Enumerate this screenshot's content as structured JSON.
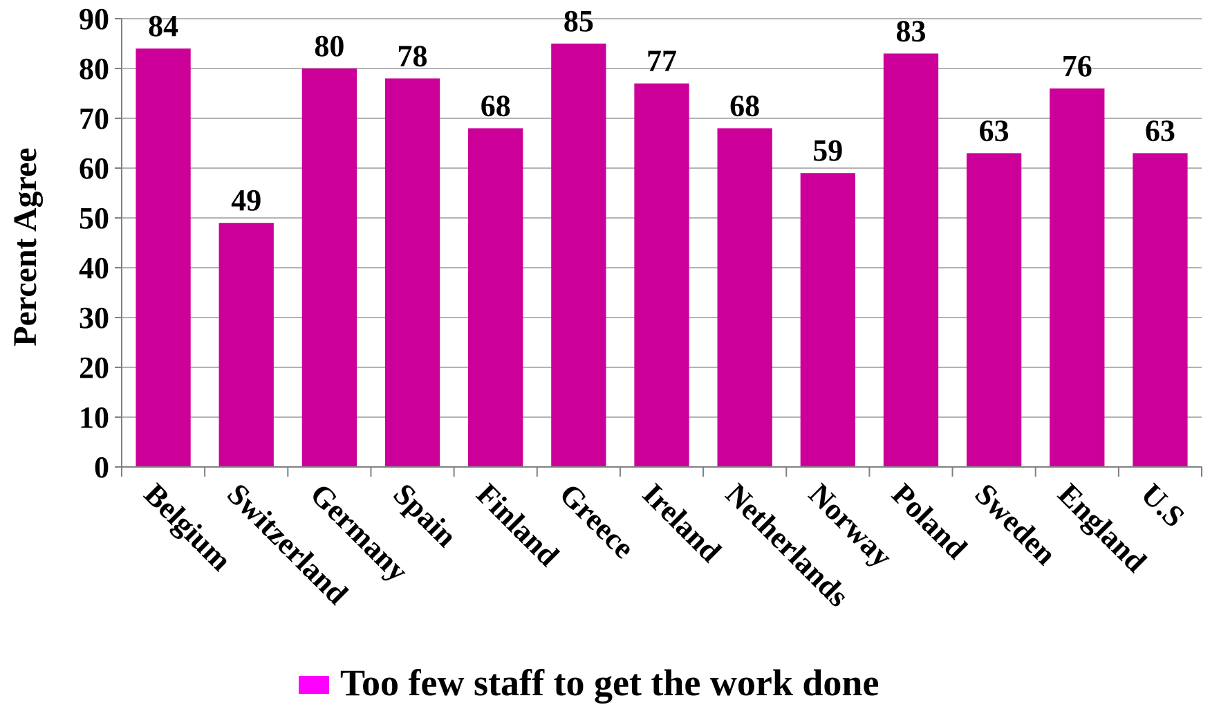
{
  "chart_data": {
    "type": "bar",
    "categories": [
      "Belgium",
      "Switzerland",
      "Germany",
      "Spain",
      "Finland",
      "Greece",
      "Ireland",
      "Netherlands",
      "Norway",
      "Poland",
      "Sweden",
      "England",
      "U.S"
    ],
    "series": [
      {
        "name": "Too few staff to get the work done",
        "values": [
          84,
          49,
          80,
          78,
          68,
          85,
          77,
          68,
          59,
          83,
          63,
          76,
          63
        ]
      }
    ],
    "ylabel": "Percent Agree",
    "ylim": [
      0,
      90
    ],
    "yticks": [
      0,
      10,
      20,
      30,
      40,
      50,
      60,
      70,
      80,
      90
    ],
    "grid": true,
    "legend_position": "bottom",
    "colors": {
      "bar": "#cc0099",
      "legend_swatch": "#ff00ff",
      "grid": "#b3b3b3",
      "axis": "#808080"
    }
  }
}
